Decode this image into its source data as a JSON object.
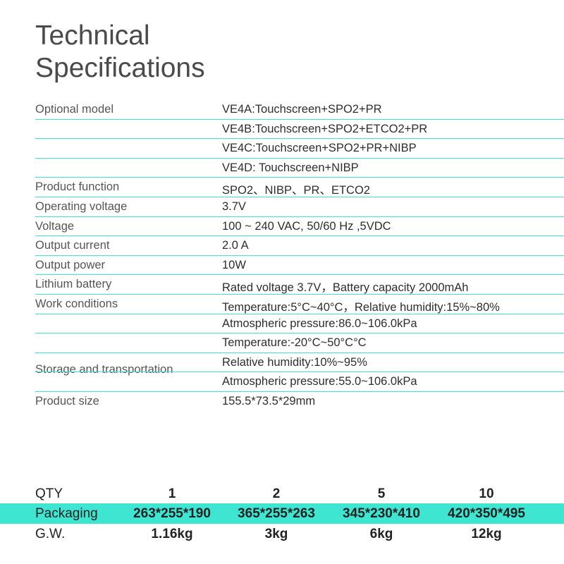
{
  "title_line1": "Technical",
  "title_line2": "Specifications",
  "specs": {
    "optional_model_label": "Optional model",
    "optional_models": [
      "VE4A:Touchscreen+SPO2+PR",
      "VE4B:Touchscreen+SPO2+ETCO2+PR",
      "VE4C:Touchscreen+SPO2+PR+NIBP",
      "VE4D: Touchscreen+NIBP"
    ],
    "product_function_label": "Product function",
    "product_function": "SPO2、NIBP、PR、ETCO2",
    "operating_voltage_label": "Operating voltage",
    "operating_voltage": "3.7V",
    "voltage_label": "Voltage",
    "voltage": "100 ~ 240 VAC, 50/60 Hz ,5VDC",
    "output_current_label": "Output current",
    "output_current": "2.0 A",
    "output_power_label": "Output power",
    "output_power": "10W",
    "lithium_battery_label": "Lithium battery",
    "lithium_battery": "Rated voltage 3.7V，Battery capacity 2000mAh",
    "work_conditions_label": "Work  conditions",
    "work_conditions": [
      "Temperature:5°C~40°C，Relative humidity:15%~80%",
      "Atmospheric pressure:86.0~106.0kPa"
    ],
    "storage_label": "Storage and transportation",
    "storage": [
      "Temperature:-20°C~50°C°C",
      "Relative humidity:10%~95%",
      "Atmospheric pressure:55.0~106.0kPa"
    ],
    "product_size_label": "Product size",
    "product_size": "155.5*73.5*29mm"
  },
  "packaging": {
    "qty_label": "QTY",
    "qty": [
      "1",
      "2",
      "5",
      "10"
    ],
    "packaging_label": "Packaging",
    "dimensions": [
      "263*255*190",
      "365*255*263",
      "345*230*410",
      "420*350*495"
    ],
    "gw_label": "G.W.",
    "weights": [
      "1.16kg",
      "3kg",
      "6kg",
      "12kg"
    ],
    "highlight_color": "#3ee6d2"
  }
}
